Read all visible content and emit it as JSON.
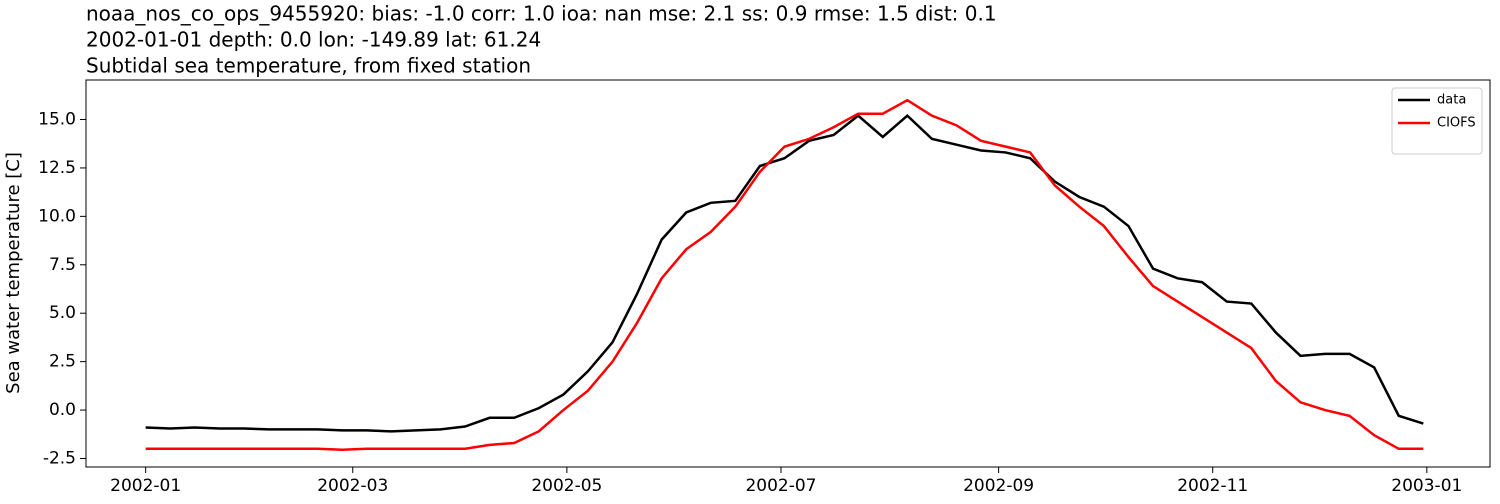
{
  "chart_data": {
    "type": "line",
    "title": [
      "noaa_nos_co_ops_9455920: bias: -1.0  corr: 1.0  ioa: nan  mse: 2.1  ss: 0.9  rmse: 1.5  dist: 0.1",
      "2002-01-01 depth: 0.0 lon: -149.89 lat: 61.24",
      "Subtidal sea temperature, from fixed station"
    ],
    "ylabel": "Sea water temperature [C]",
    "x": [
      "2002-01-01",
      "2002-01-08",
      "2002-01-15",
      "2002-01-22",
      "2002-01-29",
      "2002-02-05",
      "2002-02-12",
      "2002-02-19",
      "2002-02-26",
      "2002-03-05",
      "2002-03-12",
      "2002-03-19",
      "2002-03-26",
      "2002-04-02",
      "2002-04-09",
      "2002-04-16",
      "2002-04-23",
      "2002-04-30",
      "2002-05-07",
      "2002-05-14",
      "2002-05-21",
      "2002-05-28",
      "2002-06-04",
      "2002-06-11",
      "2002-06-18",
      "2002-06-25",
      "2002-07-02",
      "2002-07-09",
      "2002-07-16",
      "2002-07-23",
      "2002-07-30",
      "2002-08-06",
      "2002-08-13",
      "2002-08-20",
      "2002-08-27",
      "2002-09-03",
      "2002-09-10",
      "2002-09-17",
      "2002-09-24",
      "2002-10-01",
      "2002-10-08",
      "2002-10-15",
      "2002-10-22",
      "2002-10-29",
      "2002-11-05",
      "2002-11-12",
      "2002-11-19",
      "2002-11-26",
      "2002-12-03",
      "2002-12-10",
      "2002-12-17",
      "2002-12-24",
      "2002-12-31"
    ],
    "series": [
      {
        "name": "data",
        "color": "#000000",
        "values": [
          -0.9,
          -0.95,
          -0.9,
          -0.95,
          -0.95,
          -1.0,
          -1.0,
          -1.0,
          -1.05,
          -1.05,
          -1.1,
          -1.05,
          -1.0,
          -0.85,
          -0.4,
          -0.4,
          0.1,
          0.8,
          2.0,
          3.5,
          6.0,
          8.8,
          10.2,
          10.7,
          10.8,
          12.6,
          13.0,
          13.9,
          14.2,
          15.2,
          14.1,
          15.2,
          14.0,
          13.7,
          13.4,
          13.3,
          13.0,
          11.8,
          11.0,
          10.5,
          9.5,
          7.3,
          6.8,
          6.6,
          5.6,
          5.5,
          4.0,
          2.8,
          2.9,
          2.9,
          2.2,
          -0.3,
          -0.7
        ]
      },
      {
        "name": "CIOFS",
        "color": "#ff0000",
        "values": [
          -2.0,
          -2.0,
          -2.0,
          -2.0,
          -2.0,
          -2.0,
          -2.0,
          -2.0,
          -2.05,
          -2.0,
          -2.0,
          -2.0,
          -2.0,
          -2.0,
          -1.8,
          -1.7,
          -1.1,
          0.0,
          1.0,
          2.5,
          4.5,
          6.8,
          8.3,
          9.2,
          10.5,
          12.3,
          13.6,
          14.0,
          14.6,
          15.3,
          15.3,
          16.0,
          15.2,
          14.7,
          13.9,
          13.6,
          13.3,
          11.6,
          10.5,
          9.5,
          7.9,
          6.4,
          5.6,
          4.8,
          4.0,
          3.2,
          1.5,
          0.4,
          0.0,
          -0.3,
          -1.3,
          -2.0,
          -2.0
        ]
      }
    ],
    "xlim": [
      "2001-12-15",
      "2003-01-19"
    ],
    "xticks": [
      {
        "value": "2002-01-01",
        "label": "2002-01"
      },
      {
        "value": "2002-03-01",
        "label": "2002-03"
      },
      {
        "value": "2002-05-01",
        "label": "2002-05"
      },
      {
        "value": "2002-07-01",
        "label": "2002-07"
      },
      {
        "value": "2002-09-01",
        "label": "2002-09"
      },
      {
        "value": "2002-11-01",
        "label": "2002-11"
      },
      {
        "value": "2003-01-01",
        "label": "2003-01"
      }
    ],
    "ylim": [
      -2.94,
      17.04
    ],
    "yticks": [
      -2.5,
      {
        "value": 0,
        "label": "0.0"
      },
      2.5,
      {
        "value": 5,
        "label": "5.0"
      },
      7.5,
      {
        "value": 10,
        "label": "10.0"
      },
      12.5,
      {
        "value": 15,
        "label": "15.0"
      }
    ],
    "legend": "upper right"
  }
}
